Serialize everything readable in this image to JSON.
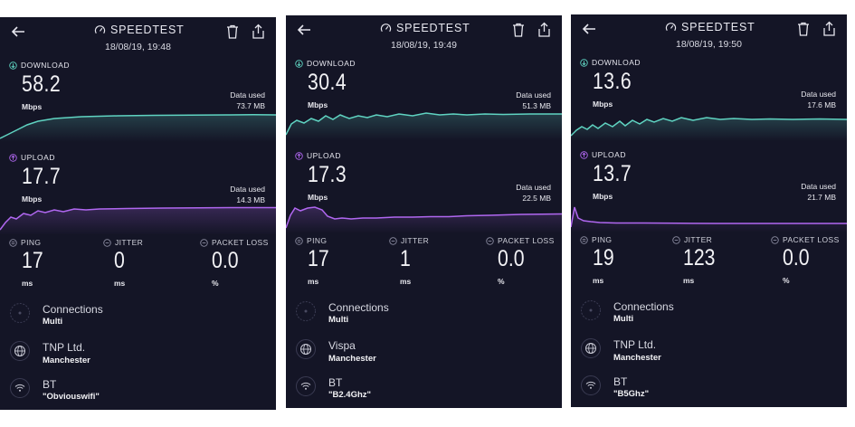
{
  "colors": {
    "background": "#141526",
    "download": "#5fd3c1",
    "upload": "#b067f0",
    "muted": "#8a8ba0"
  },
  "app": {
    "brand": "SPEEDTEST"
  },
  "labels": {
    "download": "DOWNLOAD",
    "upload": "UPLOAD",
    "mbps": "Mbps",
    "data_used": "Data used",
    "ping": "PING",
    "jitter": "JITTER",
    "packet_loss": "PACKET LOSS",
    "ms": "ms",
    "percent": "%",
    "connections": "Connections"
  },
  "results": [
    {
      "datetime": "18/08/19, 19:48",
      "download": "58.2",
      "download_data": "73.7 MB",
      "upload": "17.7",
      "upload_data": "14.3 MB",
      "ping": "17",
      "jitter": "0",
      "packet_loss": "0.0",
      "connections": "Multi",
      "isp": "TNP Ltd.",
      "location": "Manchester",
      "network_provider": "BT",
      "wifi": "\"Obviouswifi\""
    },
    {
      "datetime": "18/08/19, 19:49",
      "download": "30.4",
      "download_data": "51.3 MB",
      "upload": "17.3",
      "upload_data": "22.5 MB",
      "ping": "17",
      "jitter": "1",
      "packet_loss": "0.0",
      "connections": "Multi",
      "isp": "Vispa",
      "location": "Manchester",
      "network_provider": "BT",
      "wifi": "\"B2.4Ghz\""
    },
    {
      "datetime": "18/08/19, 19:50",
      "download": "13.6",
      "download_data": "17.6 MB",
      "upload": "13.7",
      "upload_data": "21.7 MB",
      "ping": "19",
      "jitter": "123",
      "packet_loss": "0.0",
      "connections": "Multi",
      "isp": "TNP Ltd.",
      "location": "Manchester",
      "network_provider": "BT",
      "wifi": "\"B5Ghz\""
    }
  ]
}
